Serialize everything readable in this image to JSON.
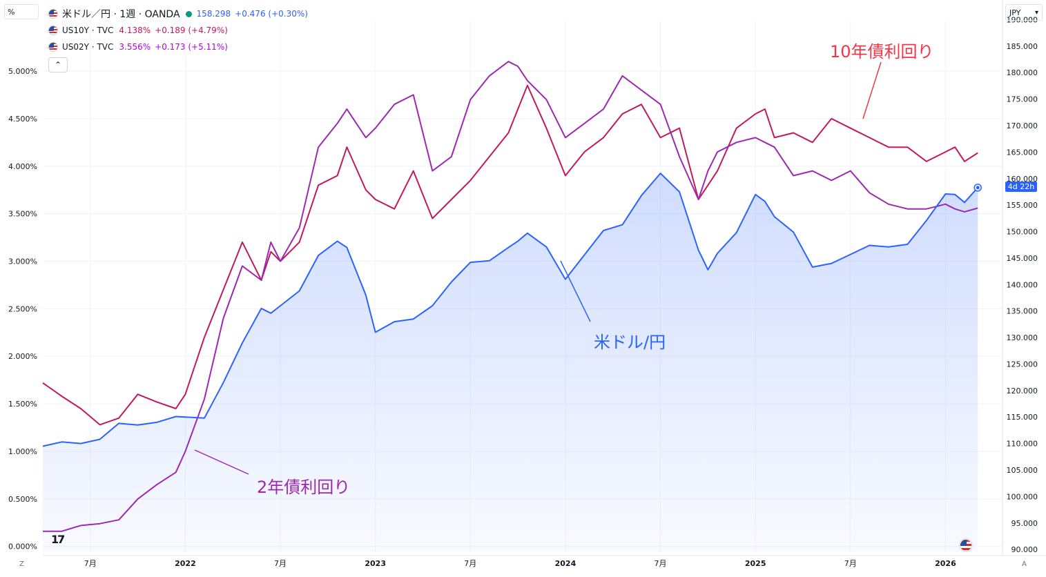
{
  "header": {
    "unit_label": "%",
    "currency_label": "JPY",
    "currency_chevron": "▾",
    "collapse_icon": "⌃",
    "corner_left": "Z",
    "corner_right": "A",
    "logo_text": "17",
    "price_tag": "4d 22h"
  },
  "legend": {
    "main": {
      "title": "米ドル／円 · 1週 · OANDA",
      "price": "158.298",
      "change": "+0.476 (+0.30%)",
      "color": "#2962ff"
    },
    "us10y": {
      "name": "US10Y · TVC",
      "value": "4.138%",
      "change": "+0.189 (+4.79%)",
      "color": "#c2185b"
    },
    "us02y": {
      "name": "US02Y · TVC",
      "value": "3.556%",
      "change": "+0.173 (+5.11%)",
      "color": "#9c27b0"
    }
  },
  "annotations": {
    "ten_year": {
      "text": "10年債利回り",
      "color": "#f23645"
    },
    "two_year": {
      "text": "2年債利回り",
      "color": "#9c27b0"
    },
    "usdjpy": {
      "text": "米ドル/円",
      "color": "#2962ff"
    }
  },
  "chart_data": {
    "type": "line",
    "x_labels": [
      "7月",
      "2022",
      "7月",
      "2023",
      "7月",
      "2024",
      "7月",
      "2025",
      "7月",
      "2026"
    ],
    "x_range": [
      2021.25,
      2026.3
    ],
    "left_axis": {
      "unit": "%",
      "ticks": [
        "0.000%",
        "0.500%",
        "1.000%",
        "1.500%",
        "2.000%",
        "2.500%",
        "3.000%",
        "3.500%",
        "4.000%",
        "4.500%",
        "5.000%"
      ],
      "ylim": [
        -0.06,
        5.53
      ]
    },
    "right_axis": {
      "unit": "JPY",
      "ticks": [
        "90.000",
        "95.000",
        "100.000",
        "105.000",
        "110.000",
        "115.000",
        "120.000",
        "125.000",
        "130.000",
        "135.000",
        "140.000",
        "145.000",
        "150.000",
        "155.000",
        "160.000",
        "165.000",
        "170.000",
        "175.000",
        "180.000",
        "185.000",
        "190.000"
      ],
      "ylim": [
        89.5,
        189.8
      ]
    },
    "grid": true,
    "series": [
      {
        "name": "US10Y",
        "axis": "left",
        "color": "#c2185b",
        "x": [
          2021.25,
          2021.35,
          2021.45,
          2021.55,
          2021.65,
          2021.75,
          2021.85,
          2021.95,
          2022.0,
          2022.1,
          2022.2,
          2022.3,
          2022.4,
          2022.45,
          2022.5,
          2022.6,
          2022.7,
          2022.8,
          2022.85,
          2022.95,
          2023.0,
          2023.1,
          2023.2,
          2023.3,
          2023.4,
          2023.5,
          2023.6,
          2023.7,
          2023.75,
          2023.8,
          2023.9,
          2024.0,
          2024.1,
          2024.2,
          2024.3,
          2024.4,
          2024.5,
          2024.6,
          2024.7,
          2024.75,
          2024.8,
          2024.9,
          2025.0,
          2025.05,
          2025.1,
          2025.2,
          2025.3,
          2025.4,
          2025.5,
          2025.6,
          2025.7,
          2025.8,
          2025.9,
          2026.0,
          2026.05,
          2026.1,
          2026.17
        ],
        "y": [
          1.72,
          1.58,
          1.45,
          1.28,
          1.35,
          1.6,
          1.52,
          1.45,
          1.6,
          2.2,
          2.7,
          3.2,
          2.8,
          3.1,
          3.0,
          3.2,
          3.8,
          3.9,
          4.2,
          3.75,
          3.65,
          3.55,
          3.95,
          3.45,
          3.65,
          3.85,
          4.1,
          4.35,
          4.6,
          4.85,
          4.4,
          3.9,
          4.15,
          4.3,
          4.55,
          4.65,
          4.3,
          4.4,
          3.65,
          3.8,
          3.95,
          4.4,
          4.55,
          4.6,
          4.3,
          4.35,
          4.25,
          4.5,
          4.4,
          4.3,
          4.2,
          4.2,
          4.05,
          4.15,
          4.2,
          4.05,
          4.14
        ]
      },
      {
        "name": "US02Y",
        "axis": "left",
        "color": "#9c27b0",
        "x": [
          2021.25,
          2021.35,
          2021.45,
          2021.55,
          2021.65,
          2021.75,
          2021.85,
          2021.95,
          2022.0,
          2022.1,
          2022.2,
          2022.3,
          2022.4,
          2022.45,
          2022.5,
          2022.6,
          2022.7,
          2022.8,
          2022.85,
          2022.95,
          2023.0,
          2023.1,
          2023.2,
          2023.3,
          2023.4,
          2023.5,
          2023.6,
          2023.7,
          2023.75,
          2023.8,
          2023.9,
          2024.0,
          2024.1,
          2024.2,
          2024.3,
          2024.4,
          2024.5,
          2024.6,
          2024.7,
          2024.75,
          2024.8,
          2024.9,
          2025.0,
          2025.05,
          2025.1,
          2025.2,
          2025.3,
          2025.4,
          2025.5,
          2025.6,
          2025.7,
          2025.8,
          2025.9,
          2026.0,
          2026.05,
          2026.1,
          2026.17
        ],
        "y": [
          0.16,
          0.16,
          0.22,
          0.24,
          0.28,
          0.5,
          0.65,
          0.78,
          1.0,
          1.55,
          2.4,
          2.95,
          2.8,
          3.2,
          3.0,
          3.35,
          4.2,
          4.45,
          4.6,
          4.3,
          4.4,
          4.65,
          4.75,
          3.95,
          4.1,
          4.7,
          4.95,
          5.1,
          5.05,
          4.9,
          4.7,
          4.3,
          4.45,
          4.6,
          4.95,
          4.8,
          4.65,
          4.1,
          3.65,
          3.95,
          4.15,
          4.25,
          4.3,
          4.25,
          4.2,
          3.9,
          3.95,
          3.85,
          3.95,
          3.72,
          3.6,
          3.55,
          3.55,
          3.6,
          3.55,
          3.52,
          3.56
        ]
      },
      {
        "name": "米ドル/円",
        "axis": "right",
        "color": "#2962ff",
        "fill": true,
        "x": [
          2021.25,
          2021.35,
          2021.45,
          2021.55,
          2021.65,
          2021.75,
          2021.85,
          2021.95,
          2022.0,
          2022.1,
          2022.2,
          2022.3,
          2022.4,
          2022.45,
          2022.5,
          2022.6,
          2022.7,
          2022.8,
          2022.85,
          2022.95,
          2023.0,
          2023.1,
          2023.2,
          2023.3,
          2023.4,
          2023.5,
          2023.6,
          2023.7,
          2023.75,
          2023.8,
          2023.9,
          2024.0,
          2024.1,
          2024.2,
          2024.3,
          2024.4,
          2024.5,
          2024.6,
          2024.7,
          2024.75,
          2024.8,
          2024.9,
          2025.0,
          2025.05,
          2025.1,
          2025.2,
          2025.3,
          2025.4,
          2025.5,
          2025.6,
          2025.7,
          2025.8,
          2025.9,
          2026.0,
          2026.05,
          2026.1,
          2026.17
        ],
        "y": [
          109.5,
          110.3,
          110.0,
          110.8,
          113.8,
          113.5,
          114.0,
          115.1,
          115.0,
          114.8,
          121.5,
          129.0,
          135.5,
          134.6,
          136.0,
          138.8,
          145.5,
          148.2,
          147.0,
          138.0,
          131.0,
          133.0,
          133.5,
          136.0,
          140.5,
          144.2,
          144.5,
          147.0,
          148.2,
          149.7,
          147.1,
          141.0,
          145.6,
          150.2,
          151.3,
          156.8,
          161.0,
          157.5,
          146.5,
          142.8,
          145.9,
          149.8,
          157.0,
          155.7,
          152.8,
          149.9,
          143.3,
          144.0,
          145.7,
          147.4,
          147.1,
          147.6,
          152.1,
          157.1,
          157.0,
          155.5,
          158.3
        ]
      }
    ]
  }
}
